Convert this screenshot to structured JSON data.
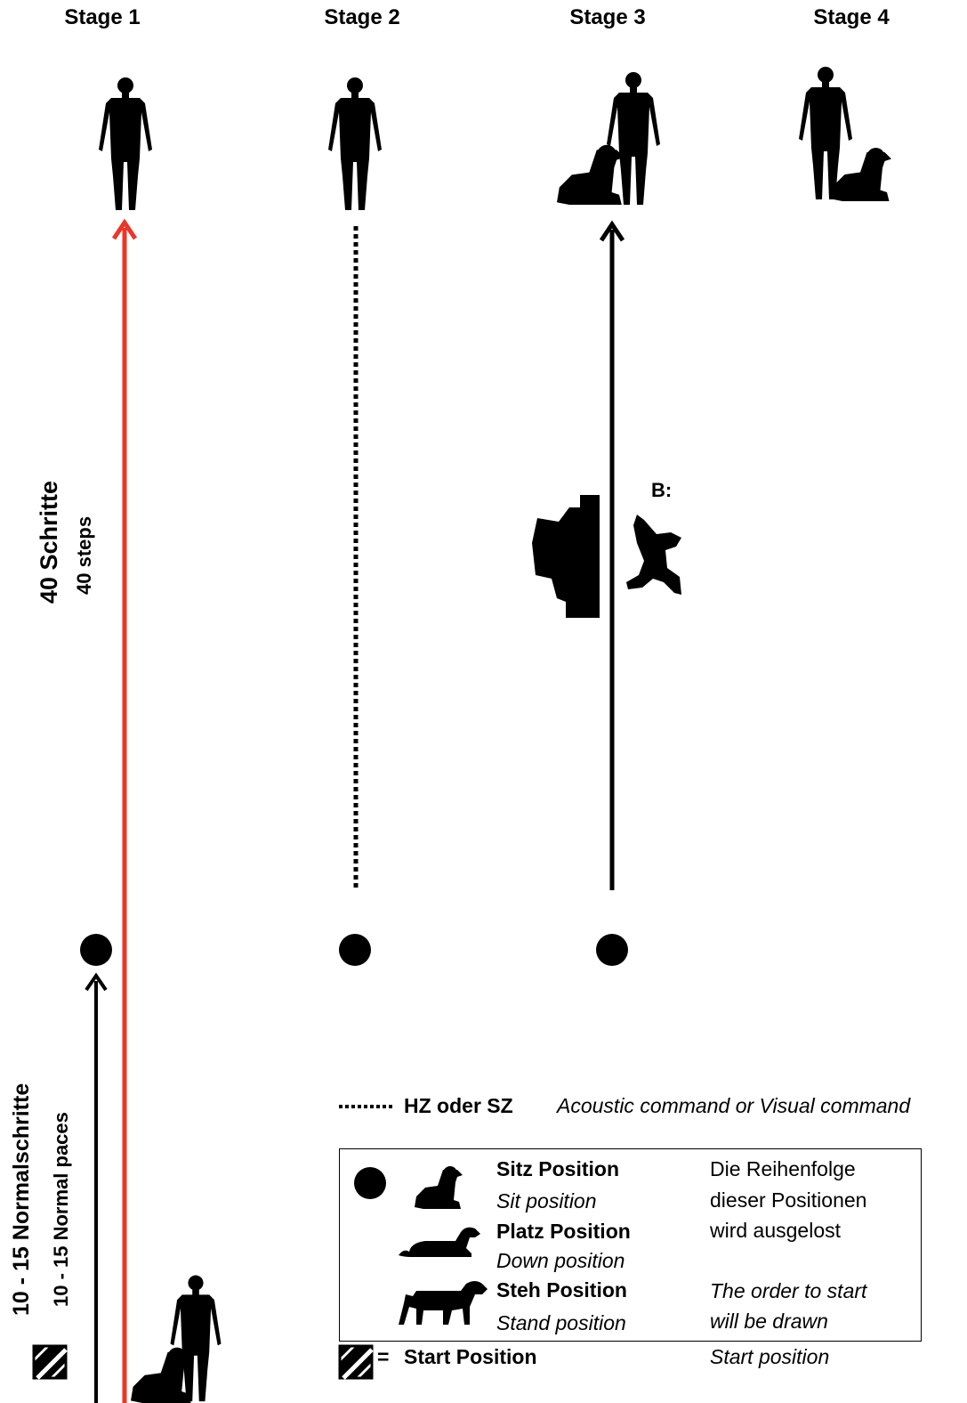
{
  "stages": [
    "Stage 1",
    "Stage 2",
    "Stage 3",
    "Stage 4"
  ],
  "distance_long": {
    "de": "40  Schritte",
    "en": "40  steps"
  },
  "distance_short": {
    "de": "10 - 15 Normalschritte",
    "en": "10 - 15 Normal paces"
  },
  "stage3_marker": "B:",
  "command_legend": {
    "code": "HZ oder SZ",
    "desc": "Acoustic command or Visual command"
  },
  "positions_legend": {
    "sit": {
      "de": "Sitz Position",
      "en": "Sit position"
    },
    "down": {
      "de": "Platz Position",
      "en": "Down position"
    },
    "stand": {
      "de": "Steh Position",
      "en": "Stand position"
    },
    "note_de": [
      "Die Reihenfolge",
      "dieser Positionen",
      "wird ausgelost"
    ],
    "note_en": [
      "The order to start",
      "will be drawn"
    ]
  },
  "start_legend": {
    "symbol": "=",
    "de": "Start Position",
    "en": "Start position"
  },
  "colors": {
    "path_red": "#e8382a",
    "ink": "#000000"
  }
}
